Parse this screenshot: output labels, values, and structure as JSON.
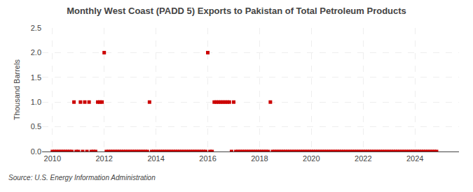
{
  "chart_data": {
    "type": "scatter",
    "title": "Monthly West Coast (PADD 5) Exports to Pakistan of Total Petroleum Products",
    "ylabel": "Thousand Barrels",
    "source": "Source: U.S. Energy Information Administration",
    "color": "#cc0000",
    "marker": "square",
    "grid": true,
    "xlim": [
      2009.6,
      2025.7
    ],
    "xticks": [
      2010,
      2012,
      2014,
      2016,
      2018,
      2020,
      2022,
      2024
    ],
    "ylim": [
      0.0,
      2.5
    ],
    "yticks": [
      {
        "value": 0.0,
        "label": "0.0"
      },
      0.5,
      {
        "value": 1.0,
        "label": "1.0"
      },
      1.5,
      {
        "value": 2.0,
        "label": "2.0"
      },
      2.5
    ],
    "x": [
      2010.0,
      2010.083,
      2010.167,
      2010.25,
      2010.333,
      2010.417,
      2010.5,
      2010.583,
      2010.667,
      2010.75,
      2010.833,
      2010.917,
      2011.0,
      2011.083,
      2011.167,
      2011.25,
      2011.333,
      2011.417,
      2011.5,
      2011.583,
      2011.667,
      2011.75,
      2011.833,
      2011.917,
      2012.0,
      2012.083,
      2012.167,
      2012.25,
      2012.333,
      2012.417,
      2012.5,
      2012.583,
      2012.667,
      2012.75,
      2012.833,
      2012.917,
      2013.0,
      2013.083,
      2013.167,
      2013.25,
      2013.333,
      2013.417,
      2013.5,
      2013.583,
      2013.667,
      2013.75,
      2013.833,
      2013.917,
      2014.0,
      2014.083,
      2014.167,
      2014.25,
      2014.333,
      2014.417,
      2014.5,
      2014.583,
      2014.667,
      2014.75,
      2014.833,
      2014.917,
      2015.0,
      2015.083,
      2015.167,
      2015.25,
      2015.333,
      2015.417,
      2015.5,
      2015.583,
      2015.667,
      2015.75,
      2015.833,
      2015.917,
      2016.0,
      2016.083,
      2016.167,
      2016.25,
      2016.333,
      2016.417,
      2016.5,
      2016.583,
      2016.667,
      2016.75,
      2016.833,
      2016.917,
      2017.0,
      2017.083,
      2017.167,
      2017.25,
      2017.333,
      2017.417,
      2017.5,
      2017.583,
      2017.667,
      2017.75,
      2017.833,
      2017.917,
      2018.0,
      2018.083,
      2018.167,
      2018.25,
      2018.333,
      2018.417,
      2018.5,
      2018.583,
      2018.667,
      2018.75,
      2018.833,
      2018.917,
      2019.0,
      2019.083,
      2019.167,
      2019.25,
      2019.333,
      2019.417,
      2019.5,
      2019.583,
      2019.667,
      2019.75,
      2019.833,
      2019.917,
      2020.0,
      2020.083,
      2020.167,
      2020.25,
      2020.333,
      2020.417,
      2020.5,
      2020.583,
      2020.667,
      2020.75,
      2020.833,
      2020.917,
      2021.0,
      2021.083,
      2021.167,
      2021.25,
      2021.333,
      2021.417,
      2021.5,
      2021.583,
      2021.667,
      2021.75,
      2021.833,
      2021.917,
      2022.0,
      2022.083,
      2022.167,
      2022.25,
      2022.333,
      2022.417,
      2022.5,
      2022.583,
      2022.667,
      2022.75,
      2022.833,
      2022.917,
      2023.0,
      2023.083,
      2023.167,
      2023.25,
      2023.333,
      2023.417,
      2023.5,
      2023.583,
      2023.667,
      2023.75,
      2023.833,
      2023.917,
      2024.0,
      2024.083,
      2024.167,
      2024.25,
      2024.333,
      2024.417,
      2024.5,
      2024.583,
      2024.667,
      2024.75,
      2024.833
    ],
    "values": [
      0.0,
      0.0,
      0.0,
      0.0,
      0.0,
      0.0,
      0.0,
      0.0,
      0.0,
      0.0,
      1.0,
      0.0,
      0.0,
      1.0,
      0.0,
      1.0,
      0.0,
      1.0,
      0.0,
      0.0,
      0.0,
      1.0,
      1.0,
      1.0,
      2.0,
      0.0,
      0.0,
      0.0,
      0.0,
      0.0,
      0.0,
      0.0,
      0.0,
      0.0,
      0.0,
      0.0,
      0.0,
      0.0,
      0.0,
      0.0,
      0.0,
      0.0,
      0.0,
      0.0,
      0.0,
      1.0,
      0.0,
      0.0,
      0.0,
      0.0,
      0.0,
      0.0,
      0.0,
      0.0,
      0.0,
      0.0,
      0.0,
      0.0,
      0.0,
      0.0,
      0.0,
      0.0,
      0.0,
      0.0,
      0.0,
      0.0,
      0.0,
      0.0,
      0.0,
      0.0,
      0.0,
      0.0,
      2.0,
      0.0,
      0.0,
      1.0,
      1.0,
      1.0,
      1.0,
      1.0,
      1.0,
      1.0,
      1.0,
      0.0,
      1.0,
      0.0,
      0.0,
      0.0,
      0.0,
      0.0,
      0.0,
      0.0,
      0.0,
      0.0,
      0.0,
      0.0,
      0.0,
      0.0,
      0.0,
      0.0,
      0.0,
      1.0,
      0.0,
      0.0,
      0.0,
      0.0,
      0.0,
      0.0,
      0.0,
      0.0,
      0.0,
      0.0,
      0.0,
      0.0,
      0.0,
      0.0,
      0.0,
      0.0,
      0.0,
      0.0,
      0.0,
      0.0,
      0.0,
      0.0,
      0.0,
      0.0,
      0.0,
      0.0,
      0.0,
      0.0,
      0.0,
      0.0,
      0.0,
      0.0,
      0.0,
      0.0,
      0.0,
      0.0,
      0.0,
      0.0,
      0.0,
      0.0,
      0.0,
      0.0,
      0.0,
      0.0,
      0.0,
      0.0,
      0.0,
      0.0,
      0.0,
      0.0,
      0.0,
      0.0,
      0.0,
      0.0,
      0.0,
      0.0,
      0.0,
      0.0,
      0.0,
      0.0,
      0.0,
      0.0,
      0.0,
      0.0,
      0.0,
      0.0,
      0.0,
      0.0,
      0.0,
      0.0,
      0.0,
      0.0,
      0.0,
      0.0,
      0.0,
      0.0,
      0.0
    ]
  }
}
